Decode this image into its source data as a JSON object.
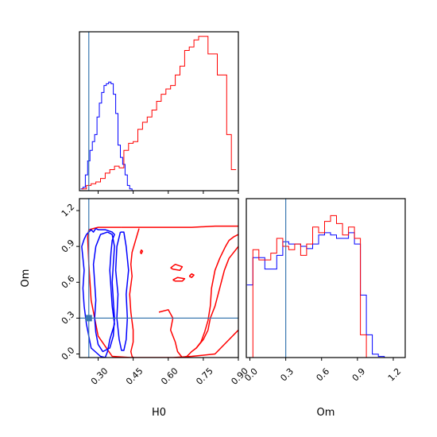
{
  "chart_data": {
    "type": "corner",
    "parameters": [
      "H0",
      "Om"
    ],
    "truth": {
      "H0": 0.26,
      "Om": 0.3
    },
    "colors": {
      "blue": "#0000ff",
      "red": "#ff0000",
      "truth": "#3a78b0"
    },
    "axes": {
      "H0": {
        "label": "H0",
        "range": [
          0.22,
          0.9
        ],
        "ticks": [
          0.3,
          0.45,
          0.6,
          0.75,
          0.9
        ],
        "tick_labels": [
          "0.30",
          "0.45",
          "0.60",
          "0.75",
          "0.90"
        ]
      },
      "Om_y": {
        "label": "Om",
        "range": [
          -0.03,
          1.3
        ],
        "ticks": [
          0.0,
          0.3,
          0.6,
          0.9,
          1.2
        ],
        "tick_labels": [
          "0.0",
          "0.3",
          "0.6",
          "0.9",
          "1.2"
        ]
      },
      "Om_x": {
        "label": "Om",
        "range": [
          -0.03,
          1.3
        ],
        "ticks": [
          0.0,
          0.3,
          0.6,
          0.9,
          1.2
        ],
        "tick_labels": [
          "0.0",
          "0.3",
          "0.6",
          "0.9",
          "1.2"
        ]
      }
    },
    "hist_H0": {
      "blue": {
        "x": [
          0.23,
          0.24,
          0.25,
          0.26,
          0.27,
          0.28,
          0.29,
          0.3,
          0.31,
          0.32,
          0.33,
          0.34,
          0.35,
          0.36,
          0.37,
          0.38,
          0.39,
          0.4,
          0.41,
          0.42,
          0.43,
          0.44,
          0.45
        ],
        "y": [
          0.01,
          0.02,
          0.09,
          0.17,
          0.23,
          0.28,
          0.32,
          0.42,
          0.5,
          0.56,
          0.6,
          0.61,
          0.62,
          0.61,
          0.55,
          0.44,
          0.26,
          0.19,
          0.15,
          0.09,
          0.03,
          0.01,
          0.0
        ]
      },
      "red": {
        "x": [
          0.24,
          0.26,
          0.28,
          0.3,
          0.32,
          0.34,
          0.36,
          0.38,
          0.4,
          0.42,
          0.44,
          0.46,
          0.48,
          0.5,
          0.52,
          0.54,
          0.56,
          0.58,
          0.6,
          0.62,
          0.64,
          0.66,
          0.68,
          0.7,
          0.72,
          0.74,
          0.76,
          0.78,
          0.8,
          0.82,
          0.84,
          0.86,
          0.88
        ],
        "y": [
          0.01,
          0.03,
          0.04,
          0.05,
          0.07,
          0.1,
          0.12,
          0.14,
          0.13,
          0.23,
          0.27,
          0.28,
          0.35,
          0.39,
          0.42,
          0.46,
          0.51,
          0.55,
          0.58,
          0.6,
          0.66,
          0.71,
          0.8,
          0.82,
          0.86,
          0.88,
          0.88,
          0.78,
          0.78,
          0.66,
          0.66,
          0.32,
          0.12
        ]
      }
    },
    "hist_Om": {
      "blue": {
        "x": [
          0.0,
          0.05,
          0.1,
          0.15,
          0.2,
          0.25,
          0.3,
          0.35,
          0.4,
          0.45,
          0.5,
          0.55,
          0.6,
          0.65,
          0.7,
          0.75,
          0.8,
          0.85,
          0.9,
          0.95,
          1.0,
          1.05,
          1.1,
          1.15
        ],
        "y": [
          0.64,
          0.88,
          0.88,
          0.78,
          0.78,
          0.9,
          1.02,
          1.0,
          1.0,
          0.98,
          0.96,
          1.0,
          1.08,
          1.1,
          1.08,
          1.05,
          1.05,
          1.1,
          1.0,
          0.55,
          0.2,
          0.03,
          0.01,
          0.0
        ]
      },
      "red": {
        "x": [
          0.0,
          0.05,
          0.1,
          0.15,
          0.2,
          0.25,
          0.3,
          0.35,
          0.4,
          0.45,
          0.5,
          0.55,
          0.6,
          0.65,
          0.7,
          0.75,
          0.8,
          0.85,
          0.9,
          0.95,
          1.0,
          1.05
        ],
        "y": [
          0.0,
          0.95,
          0.86,
          0.86,
          0.92,
          1.05,
          0.98,
          0.95,
          1.0,
          0.9,
          1.0,
          1.15,
          1.1,
          1.2,
          1.25,
          1.18,
          1.08,
          1.15,
          1.05,
          0.2,
          0.0,
          0.0
        ]
      }
    },
    "contours_2d": {
      "blue": [
        {
          "level": "outer",
          "H0": [
            0.29,
            0.28,
            0.27,
            0.25,
            0.24,
            0.23,
            0.235,
            0.24,
            0.235,
            0.24,
            0.25,
            0.27,
            0.31,
            0.33,
            0.34,
            0.35,
            0.37,
            0.36,
            0.355,
            0.35,
            0.355,
            0.36,
            0.37,
            0.36,
            0.33,
            0.3,
            0.29
          ],
          "Om": [
            1.05,
            1.02,
            1.04,
            1.0,
            0.96,
            0.9,
            0.8,
            0.7,
            0.55,
            0.4,
            0.25,
            0.05,
            -0.02,
            -0.03,
            0.02,
            0.12,
            0.25,
            0.4,
            0.55,
            0.7,
            0.85,
            0.95,
            1.0,
            1.02,
            1.04,
            1.04,
            1.05
          ]
        },
        {
          "level": "mid",
          "H0": [
            0.34,
            0.31,
            0.29,
            0.28,
            0.285,
            0.29,
            0.285,
            0.29,
            0.3,
            0.32,
            0.35,
            0.365,
            0.37,
            0.365,
            0.36,
            0.365,
            0.37,
            0.36,
            0.34
          ],
          "Om": [
            1.02,
            1.0,
            0.9,
            0.75,
            0.6,
            0.45,
            0.3,
            0.18,
            0.08,
            0.02,
            0.05,
            0.15,
            0.3,
            0.45,
            0.6,
            0.75,
            0.9,
            1.0,
            1.02
          ]
        },
        {
          "level": "inner",
          "H0": [
            0.395,
            0.38,
            0.375,
            0.385,
            0.38,
            0.39,
            0.4,
            0.41,
            0.42,
            0.425,
            0.42,
            0.43,
            0.42,
            0.41,
            0.395
          ],
          "Om": [
            1.02,
            0.9,
            0.7,
            0.5,
            0.3,
            0.12,
            0.03,
            0.03,
            0.12,
            0.3,
            0.5,
            0.7,
            0.9,
            1.02,
            1.02
          ]
        }
      ],
      "red": [
        {
          "level": "outer",
          "H0": [
            0.4,
            0.3,
            0.26,
            0.255,
            0.26,
            0.27,
            0.3,
            0.36,
            0.44,
            0.5,
            0.56,
            0.62,
            0.7,
            0.8,
            0.9
          ],
          "Om": [
            1.06,
            1.06,
            1.04,
            0.98,
            0.75,
            0.45,
            0.15,
            -0.02,
            -0.03,
            -0.03,
            -0.03,
            -0.03,
            -0.02,
            0.0,
            0.2
          ]
        },
        {
          "level": "outer-top",
          "H0": [
            0.4,
            0.55,
            0.7,
            0.8,
            0.9
          ],
          "Om": [
            1.06,
            1.06,
            1.06,
            1.07,
            1.07
          ]
        },
        {
          "level": "mid-left",
          "H0": [
            0.475,
            0.46,
            0.445,
            0.44,
            0.445,
            0.435,
            0.44,
            0.45,
            0.45,
            0.44,
            0.445,
            0.45
          ],
          "Om": [
            1.05,
            0.95,
            0.85,
            0.75,
            0.65,
            0.5,
            0.35,
            0.2,
            0.1,
            0.02,
            -0.02,
            -0.03
          ]
        },
        {
          "level": "mid-right",
          "H0": [
            0.56,
            0.6,
            0.62,
            0.61,
            0.63,
            0.64,
            0.66,
            0.68,
            0.7,
            0.72,
            0.75,
            0.77,
            0.78,
            0.8,
            0.82,
            0.84,
            0.86,
            0.88,
            0.9
          ],
          "Om": [
            0.35,
            0.37,
            0.3,
            0.2,
            0.1,
            0.02,
            -0.03,
            -0.02,
            0.02,
            0.05,
            0.12,
            0.2,
            0.3,
            0.4,
            0.55,
            0.7,
            0.8,
            0.85,
            0.9
          ]
        },
        {
          "level": "inner-right",
          "H0": [
            0.72,
            0.74,
            0.755,
            0.77,
            0.78,
            0.785,
            0.8,
            0.82,
            0.845,
            0.86,
            0.88,
            0.89,
            0.9
          ],
          "Om": [
            0.05,
            0.1,
            0.18,
            0.28,
            0.4,
            0.55,
            0.7,
            0.8,
            0.9,
            0.95,
            0.98,
            0.99,
            1.0
          ]
        },
        {
          "level": "blob-a",
          "H0": [
            0.61,
            0.63,
            0.66,
            0.65,
            0.62,
            0.61
          ],
          "Om": [
            0.72,
            0.75,
            0.73,
            0.7,
            0.71,
            0.72
          ]
        },
        {
          "level": "blob-b",
          "H0": [
            0.62,
            0.64,
            0.67,
            0.66,
            0.63,
            0.62
          ],
          "Om": [
            0.62,
            0.64,
            0.63,
            0.61,
            0.61,
            0.62
          ]
        },
        {
          "level": "blob-c",
          "H0": [
            0.69,
            0.7,
            0.71,
            0.7,
            0.69
          ],
          "Om": [
            0.65,
            0.67,
            0.66,
            0.64,
            0.65
          ]
        },
        {
          "level": "blob-d",
          "H0": [
            0.48,
            0.485,
            0.49,
            0.485,
            0.48
          ],
          "Om": [
            0.85,
            0.87,
            0.86,
            0.84,
            0.85
          ]
        }
      ]
    }
  }
}
